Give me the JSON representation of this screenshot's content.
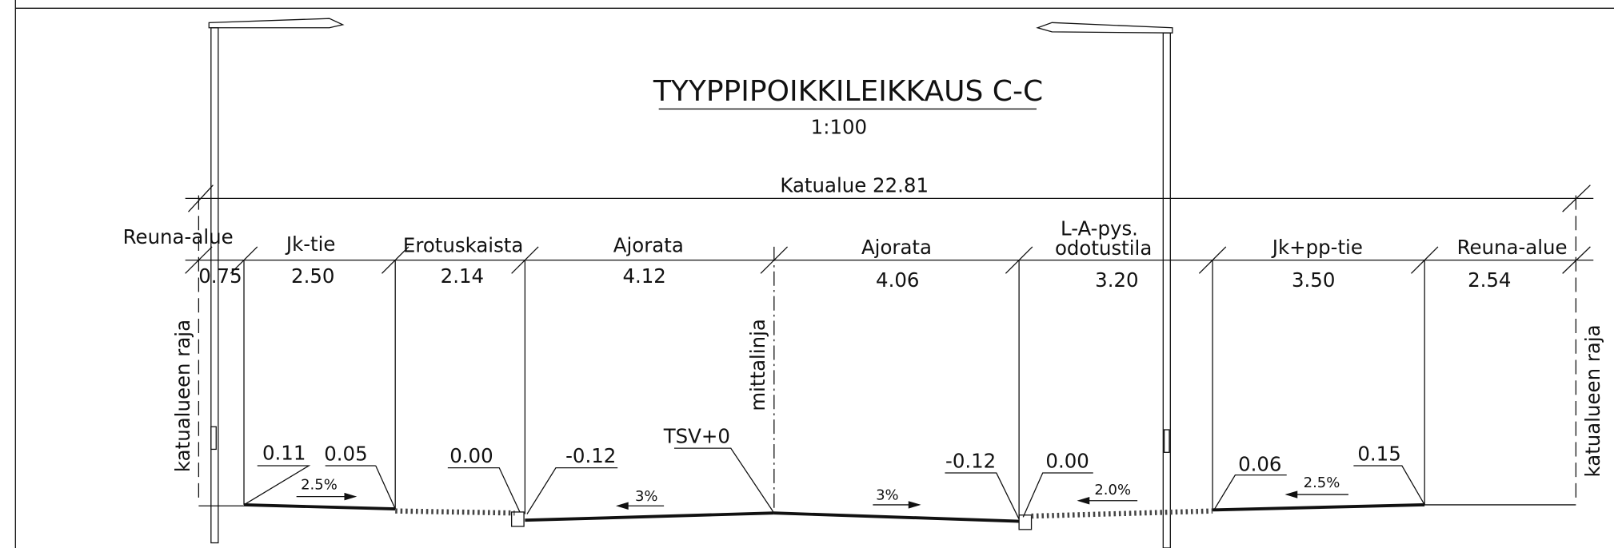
{
  "title": "TYYPPIPOIKKILEIKKAUS C-C",
  "scale": "1:100",
  "total": "Katualue 22.81",
  "segments": [
    {
      "name": "Reuna-alue",
      "width": "0.75"
    },
    {
      "name": "Jk-tie",
      "width": "2.50"
    },
    {
      "name": "Erotuskaista",
      "width": "2.14"
    },
    {
      "name": "Ajorata",
      "width": "4.12"
    },
    {
      "name": "Ajorata",
      "width": "4.06"
    },
    {
      "name": [
        "L-A-pys.",
        "odotustila"
      ],
      "width": "3.20"
    },
    {
      "name": "Jk+pp-tie",
      "width": "3.50"
    },
    {
      "name": "Reuna-alue",
      "width": "2.54"
    }
  ],
  "elevations": [
    "0.11",
    "0.05",
    "0.00",
    "-0.12",
    "TSV+0",
    "-0.12",
    "0.00",
    "0.06",
    "0.15"
  ],
  "slopes": [
    "2.5%",
    "3%",
    "3%",
    "2.0%",
    "2.5%"
  ],
  "labels": {
    "boundary_left": "katualueen raja",
    "centerline": "mittalinja",
    "boundary_right": "katualueen raja"
  }
}
